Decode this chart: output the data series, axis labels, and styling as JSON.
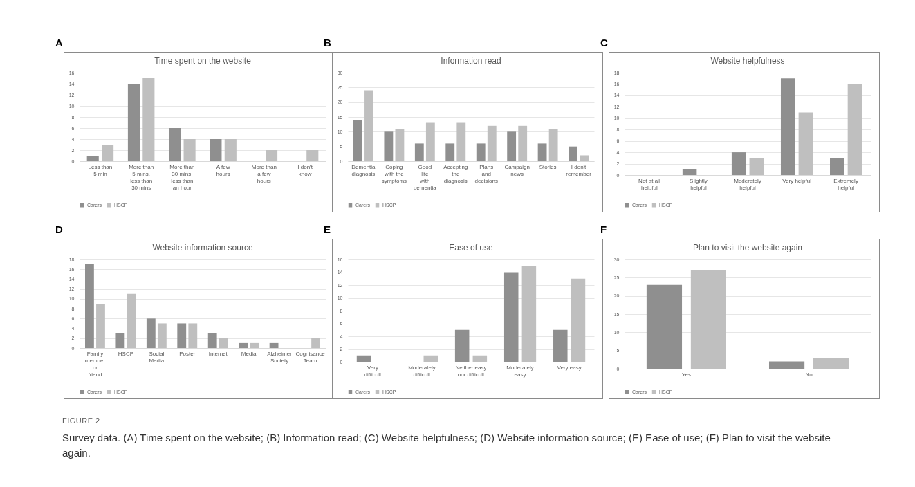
{
  "chart_data": [
    {
      "type": "bar",
      "title": "Time spent on the website",
      "annotations": [
        "A"
      ],
      "categories": [
        "Less than 5 min",
        "More than 5 mins, less than 30 mins",
        "More than 30 mins, less than an hour",
        "A few hours",
        "More than a few hours",
        "I don't know"
      ],
      "series": [
        {
          "name": "Carers",
          "color": "#8f8f8f",
          "values": [
            1,
            14,
            6,
            4,
            0,
            0
          ]
        },
        {
          "name": "HSCP",
          "color": "#bfbfbf",
          "values": [
            3,
            15,
            4,
            4,
            2,
            2
          ]
        }
      ],
      "ylim": [
        0,
        16
      ],
      "yticks": [
        0,
        2,
        4,
        6,
        8,
        10,
        12,
        14,
        16
      ],
      "grid": "y",
      "legend": "bottom"
    },
    {
      "type": "bar",
      "title": "Information read",
      "annotations": [
        "B"
      ],
      "categories": [
        "Dementia diagnosis",
        "Coping with the symptoms",
        "Good life with dementia",
        "Accepting the diagnosis",
        "Plans and decisions",
        "Campaign news",
        "Stories",
        "I don't remember"
      ],
      "series": [
        {
          "name": "Carers",
          "color": "#8f8f8f",
          "values": [
            14,
            10,
            6,
            6,
            6,
            10,
            6,
            5
          ]
        },
        {
          "name": "HSCP",
          "color": "#bfbfbf",
          "values": [
            24,
            11,
            13,
            13,
            12,
            12,
            11,
            2
          ]
        }
      ],
      "ylim": [
        0,
        30
      ],
      "yticks": [
        0,
        5,
        10,
        15,
        20,
        25,
        30
      ],
      "grid": "y",
      "legend": "bottom"
    },
    {
      "type": "bar",
      "title": "Website helpfulness",
      "annotations": [
        "C"
      ],
      "categories": [
        "Not at all helpful",
        "Slightly helpful",
        "Moderately helpful",
        "Very helpful",
        "Extremely helpful"
      ],
      "series": [
        {
          "name": "Carers",
          "color": "#8f8f8f",
          "values": [
            0,
            1,
            4,
            17,
            3
          ]
        },
        {
          "name": "HSCP",
          "color": "#bfbfbf",
          "values": [
            0,
            0,
            3,
            11,
            16
          ]
        }
      ],
      "ylim": [
        0,
        18
      ],
      "yticks": [
        0,
        2,
        4,
        6,
        8,
        10,
        12,
        14,
        16,
        18
      ],
      "grid": "y",
      "legend": "bottom"
    },
    {
      "type": "bar",
      "title": "Website information source",
      "annotations": [
        "D"
      ],
      "categories": [
        "Family member or friend",
        "HSCP",
        "Social Media",
        "Poster",
        "Internet",
        "Media",
        "Alzheimer Society",
        "Cognisance Team"
      ],
      "series": [
        {
          "name": "Carers",
          "color": "#8f8f8f",
          "values": [
            17,
            3,
            6,
            5,
            3,
            1,
            1,
            0
          ]
        },
        {
          "name": "HSCP",
          "color": "#bfbfbf",
          "values": [
            9,
            11,
            5,
            5,
            2,
            1,
            0,
            2
          ]
        }
      ],
      "ylim": [
        0,
        18
      ],
      "yticks": [
        0,
        2,
        4,
        6,
        8,
        10,
        12,
        14,
        16,
        18
      ],
      "grid": "y",
      "legend": "bottom"
    },
    {
      "type": "bar",
      "title": "Ease of use",
      "annotations": [
        "E"
      ],
      "categories": [
        "Very difficult",
        "Moderately difficult",
        "Neither easy nor difficult",
        "Moderately easy",
        "Very easy"
      ],
      "series": [
        {
          "name": "Carers",
          "color": "#8f8f8f",
          "values": [
            1,
            0,
            5,
            14,
            5
          ]
        },
        {
          "name": "HSCP",
          "color": "#bfbfbf",
          "values": [
            0,
            1,
            1,
            15,
            13
          ]
        }
      ],
      "ylim": [
        0,
        16
      ],
      "yticks": [
        0,
        2,
        4,
        6,
        8,
        10,
        12,
        14,
        16
      ],
      "grid": "y",
      "legend": "bottom"
    },
    {
      "type": "bar",
      "title": "Plan to visit the website again",
      "annotations": [
        "F",
        "FIGURE 2",
        "Survey data. (A) Time spent on the website; (B) Information read; (C) Website helpfulness; (D) Website information source; (E) Ease of use; (F) Plan to visit the website again."
      ],
      "categories": [
        "Yes",
        "No"
      ],
      "series": [
        {
          "name": "Carers",
          "color": "#8f8f8f",
          "values": [
            23,
            2
          ]
        },
        {
          "name": "HSCP",
          "color": "#bfbfbf",
          "values": [
            27,
            3
          ]
        }
      ],
      "ylim": [
        0,
        30
      ],
      "yticks": [
        0,
        5,
        10,
        15,
        20,
        25,
        30
      ],
      "grid": "y",
      "legend": "bottom"
    }
  ]
}
